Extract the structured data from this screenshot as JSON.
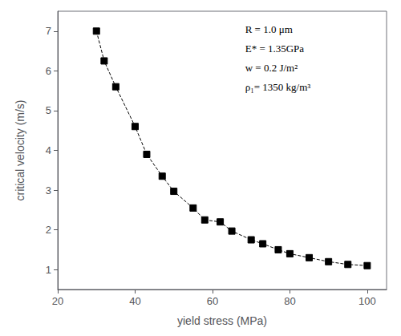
{
  "chart_data": {
    "type": "line",
    "x": [
      30,
      32,
      35,
      40,
      43,
      47,
      50,
      55,
      58,
      62,
      65,
      70,
      73,
      77,
      80,
      85,
      90,
      95,
      100
    ],
    "values": [
      7.0,
      6.25,
      5.6,
      4.6,
      3.9,
      3.35,
      2.97,
      2.55,
      2.25,
      2.2,
      1.97,
      1.75,
      1.65,
      1.5,
      1.4,
      1.3,
      1.2,
      1.13,
      1.1
    ],
    "xlabel": "yield stress (MPa)",
    "ylabel": "critical velocity (m/s)",
    "xlim": [
      20,
      105
    ],
    "ylim": [
      0.5,
      7.5
    ],
    "xticks": [
      20,
      40,
      60,
      80,
      100
    ],
    "yticks": [
      1,
      2,
      3,
      4,
      5,
      6,
      7
    ],
    "annotations": [
      "R = 1.0 μm",
      "E* = 1.35GPa",
      "w = 0.2 J/m²",
      "ρ₁= 1350 kg/m³"
    ],
    "color": "#000000",
    "marker": "square",
    "line_style": "dashed",
    "grid": false
  }
}
